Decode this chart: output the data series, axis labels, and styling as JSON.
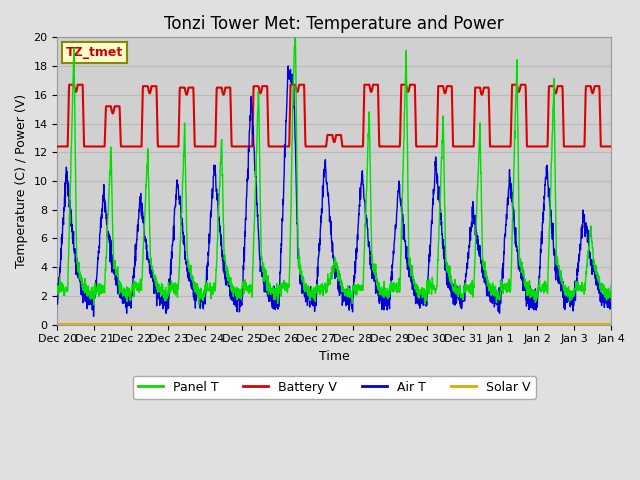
{
  "title": "Tonzi Tower Met: Temperature and Power",
  "xlabel": "Time",
  "ylabel": "Temperature (C) / Power (V)",
  "ylim": [
    0,
    20
  ],
  "n_days": 15,
  "x_tick_labels": [
    "Dec 20",
    "Dec 21",
    "Dec 22",
    "Dec 23",
    "Dec 24",
    "Dec 25",
    "Dec 26",
    "Dec 27",
    "Dec 28",
    "Dec 29",
    "Dec 30",
    "Dec 31",
    "Jan 1",
    "Jan 2",
    "Jan 3",
    "Jan 4"
  ],
  "legend_labels": [
    "Panel T",
    "Battery V",
    "Air T",
    "Solar V"
  ],
  "panel_color": "#00dd00",
  "battery_color": "#dd0000",
  "air_color": "#0000dd",
  "solar_color": "#ddaa00",
  "fig_bg_color": "#e0e0e0",
  "plot_bg_color": "#d0d0d0",
  "watermark_text": "TZ_tmet",
  "watermark_fg": "#cc0000",
  "watermark_bg": "#ffffcc",
  "watermark_edge": "#888800",
  "grid_color": "#bbbbbb",
  "title_fontsize": 12,
  "label_fontsize": 9,
  "tick_fontsize": 8,
  "battery_base": 12.4,
  "day_peaks_panel": [
    19.5,
    12.2,
    12.2,
    13.5,
    13.0,
    16.5,
    17.0,
    3.5,
    15.0,
    19.3,
    14.5,
    14.0,
    18.5,
    16.8,
    6.8
  ],
  "day_peaks_air": [
    10.5,
    9.2,
    8.8,
    10.2,
    11.0,
    16.0,
    17.2,
    11.5,
    10.5,
    9.7,
    11.5,
    7.8,
    10.5,
    11.0,
    7.5
  ],
  "battery_spike_days": [
    0,
    1,
    2,
    3,
    4,
    5,
    6,
    7,
    8,
    9,
    10,
    11,
    12,
    13,
    14
  ],
  "battery_spike_heights": [
    4.3,
    2.8,
    4.2,
    4.1,
    4.1,
    4.2,
    4.3,
    0.8,
    4.3,
    4.3,
    4.2,
    4.1,
    4.3,
    4.2,
    4.2
  ]
}
